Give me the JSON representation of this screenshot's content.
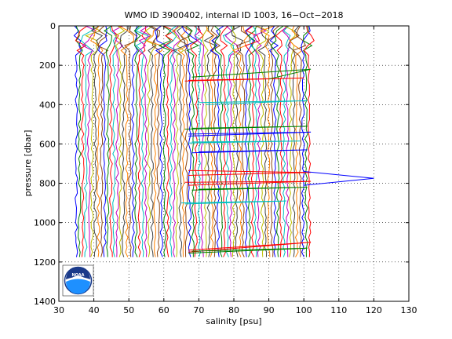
{
  "chart_data": {
    "type": "line",
    "title": "WMO ID 3900402, internal ID 1003, 16−Oct−2018",
    "xlabel": "salinity [psu]",
    "ylabel": "pressure [dbar]",
    "xlim": [
      30,
      130
    ],
    "ylim": [
      0,
      1400
    ],
    "y_reversed": true,
    "grid": true,
    "grid_style": "dotted",
    "xticks": [
      30,
      40,
      50,
      60,
      70,
      80,
      90,
      100,
      110,
      120,
      130
    ],
    "yticks": [
      0,
      200,
      400,
      600,
      800,
      1000,
      1200,
      1400
    ],
    "profile_colors": [
      "#0000ff",
      "#008000",
      "#ff0000",
      "#00bfbf",
      "#bf00bf",
      "#bfbf00",
      "#404040",
      "#ff8000",
      "#8b4513"
    ],
    "profile_band": {
      "salinity_start": 35,
      "salinity_end": 102,
      "salinity_step": 0.9,
      "pressure_top": 0,
      "pressure_bottom": 1195
    },
    "spikes": [
      {
        "color": "#ff0000",
        "points": [
          [
            67,
            277
          ],
          [
            100,
            265
          ],
          [
            66,
            280
          ]
        ]
      },
      {
        "color": "#008000",
        "points": [
          [
            90,
            270
          ],
          [
            102,
            220
          ],
          [
            68,
            260
          ]
        ]
      },
      {
        "color": "#00bfbf",
        "points": [
          [
            70,
            390
          ],
          [
            101,
            380
          ],
          [
            72,
            400
          ]
        ]
      },
      {
        "color": "#008000",
        "points": [
          [
            68,
            520
          ],
          [
            101,
            510
          ],
          [
            66,
            525
          ]
        ]
      },
      {
        "color": "#0000ff",
        "points": [
          [
            67,
            550
          ],
          [
            102,
            540
          ],
          [
            67,
            560
          ]
        ]
      },
      {
        "color": "#00bfbf",
        "points": [
          [
            68,
            590
          ],
          [
            99,
            585
          ],
          [
            67,
            595
          ]
        ]
      },
      {
        "color": "#0000ff",
        "points": [
          [
            70,
            640
          ],
          [
            101,
            630
          ],
          [
            68,
            645
          ]
        ]
      },
      {
        "color": "#ff0000",
        "points": [
          [
            67,
            735
          ],
          [
            102,
            745
          ],
          [
            67,
            760
          ]
        ]
      },
      {
        "color": "#0000ff",
        "points": [
          [
            100,
            740
          ],
          [
            120,
            775
          ],
          [
            100,
            810
          ]
        ]
      },
      {
        "color": "#ff0000",
        "points": [
          [
            66,
            795
          ],
          [
            102,
            790
          ],
          [
            67,
            810
          ]
        ]
      },
      {
        "color": "#008000",
        "points": [
          [
            70,
            830
          ],
          [
            101,
            820
          ],
          [
            68,
            835
          ]
        ]
      },
      {
        "color": "#00bfbf",
        "points": [
          [
            65,
            900
          ],
          [
            95,
            890
          ],
          [
            66,
            905
          ]
        ]
      },
      {
        "color": "#ff0000",
        "points": [
          [
            67,
            1140
          ],
          [
            102,
            1100
          ],
          [
            67,
            1150
          ]
        ]
      },
      {
        "color": "#008000",
        "points": [
          [
            68,
            1145
          ],
          [
            101,
            1130
          ],
          [
            67,
            1155
          ]
        ]
      }
    ]
  },
  "logo": {
    "text": "NOAA"
  }
}
